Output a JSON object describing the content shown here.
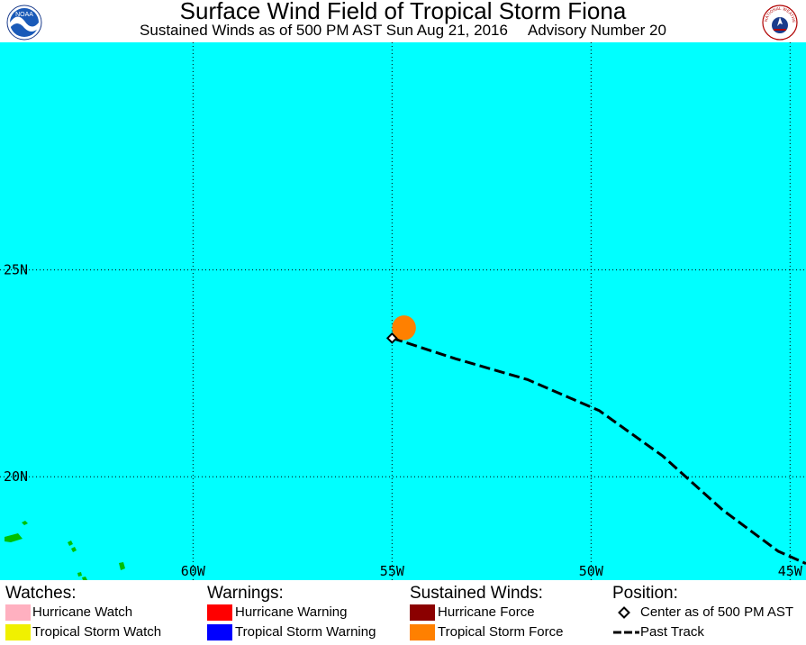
{
  "header": {
    "title": "Surface Wind Field of Tropical Storm Fiona",
    "subtitle_time": "Sustained Winds as of 500 PM AST Sun Aug 21, 2016",
    "subtitle_advisory": "Advisory Number 20",
    "left_logo_text": "NOAA",
    "right_logo_text": "NATIONAL WEATHER SERVICE"
  },
  "map": {
    "ocean_color": "#00ffff",
    "land_color": "#00c000",
    "lat_labels": [
      "25N",
      "20N"
    ],
    "lon_labels": [
      "60W",
      "55W",
      "50W",
      "45W"
    ],
    "lat_range": [
      17.5,
      30.5
    ],
    "lon_range": [
      -64.85,
      -44.6
    ],
    "storm_center": {
      "lon": -55.0,
      "lat": 23.35
    },
    "tropical_storm_force_field": {
      "lon": -54.7,
      "lat": 23.6,
      "radius_deg": 0.3
    },
    "past_track": [
      {
        "lon": -55.0,
        "lat": 23.35
      },
      {
        "lon": -53.4,
        "lat": 22.85
      },
      {
        "lon": -51.6,
        "lat": 22.35
      },
      {
        "lon": -49.8,
        "lat": 21.6
      },
      {
        "lon": -48.2,
        "lat": 20.5
      },
      {
        "lon": -46.7,
        "lat": 19.2
      },
      {
        "lon": -45.3,
        "lat": 18.2
      },
      {
        "lon": -44.6,
        "lat": 17.9
      }
    ]
  },
  "legend": {
    "watches": {
      "heading": "Watches:",
      "items": [
        {
          "label": "Hurricane Watch",
          "color": "#ffb0c0"
        },
        {
          "label": "Tropical Storm Watch",
          "color": "#f0f000"
        }
      ]
    },
    "warnings": {
      "heading": "Warnings:",
      "items": [
        {
          "label": "Hurricane Warning",
          "color": "#ff0000"
        },
        {
          "label": "Tropical Storm Warning",
          "color": "#0000ff"
        }
      ]
    },
    "winds": {
      "heading": "Sustained Winds:",
      "items": [
        {
          "label": "Hurricane Force",
          "color": "#8b0000"
        },
        {
          "label": "Tropical Storm Force",
          "color": "#ff8000"
        }
      ]
    },
    "position": {
      "heading": "Position:",
      "items": [
        {
          "label": "Center as of 500 PM AST",
          "icon": "diamond-marker-icon"
        },
        {
          "label": "Past Track",
          "icon": "dashed-line-icon"
        }
      ]
    }
  }
}
